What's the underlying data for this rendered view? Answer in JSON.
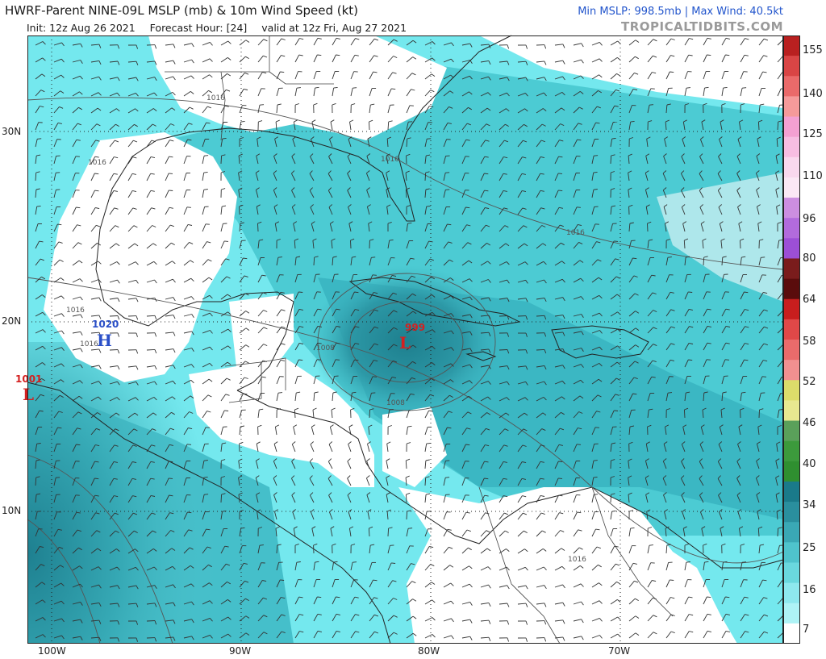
{
  "header": {
    "title": "HWRF-Parent NINE-09L MSLP (mb) & 10m Wind Speed (kt)",
    "init": "Init: 12z Aug 26 2021",
    "forecast_hour": "Forecast Hour: [24]",
    "valid": "valid at 12z Fri, Aug 27 2021",
    "stats": "Min MSLP: 998.5mb | Max Wind: 40.5kt",
    "brand": "TROPICALTIDBITS.COM"
  },
  "map": {
    "lon_labels": [
      "100W",
      "90W",
      "80W",
      "70W"
    ],
    "lat_labels": [
      "30N",
      "20N",
      "10N"
    ],
    "pressure_centers": [
      {
        "type": "L",
        "value": "999",
        "color": "#d42020"
      },
      {
        "type": "H",
        "value": "1020",
        "color": "#2a4fc8"
      },
      {
        "type": "L",
        "value": "1001",
        "color": "#d42020"
      }
    ],
    "isobar_labels": [
      "1016",
      "1016",
      "1016",
      "1016",
      "1016",
      "1008",
      "1008",
      "1016",
      "1016"
    ]
  },
  "colorbar": {
    "ticks": [
      "155",
      "140",
      "125",
      "110",
      "96",
      "80",
      "64",
      "58",
      "52",
      "46",
      "40",
      "34",
      "25",
      "16",
      "7"
    ],
    "colors": [
      "#b92020",
      "#d94545",
      "#ea6a6a",
      "#f59a9a",
      "#f4a0d2",
      "#f7bde2",
      "#f9d8ee",
      "#fbe8f5",
      "#cc8ee0",
      "#b26bdc",
      "#9c4fd6",
      "#7a1c1c",
      "#5a0c0c",
      "#c81e1e",
      "#e04848",
      "#ea6b6b",
      "#f19090",
      "#dcdc6a",
      "#e8e890",
      "#5aa05a",
      "#3c9a3c",
      "#2f8f30",
      "#1a7a8a",
      "#2a8f9e",
      "#3aa8b5",
      "#4fc3cc",
      "#6ad8de",
      "#8ee8ee",
      "#aef3f6",
      "#ffffff"
    ]
  }
}
